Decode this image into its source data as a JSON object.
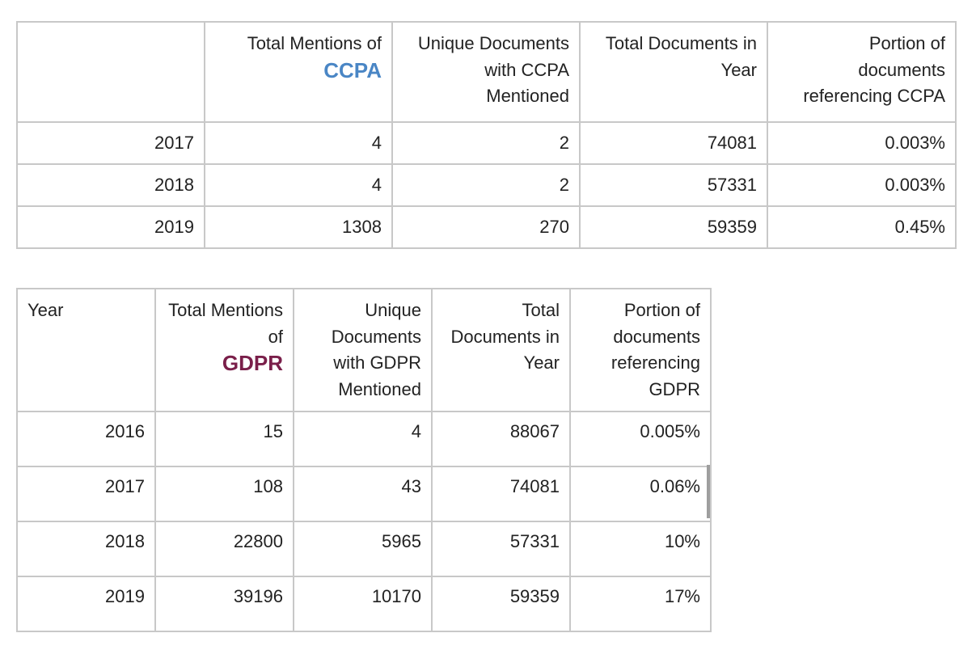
{
  "ccpa_table": {
    "headers": {
      "year": "",
      "total_mentions_prefix": "Total Mentions of",
      "keyword": "CCPA",
      "unique_docs": "Unique Documents with CCPA Mentioned",
      "total_docs": "Total Documents in Year",
      "portion": "Portion of documents referencing CCPA"
    },
    "rows": [
      {
        "year": "2017",
        "mentions": "4",
        "unique": "2",
        "total": "74081",
        "portion": "0.003%"
      },
      {
        "year": "2018",
        "mentions": "4",
        "unique": "2",
        "total": "57331",
        "portion": "0.003%"
      },
      {
        "year": "2019",
        "mentions": "1308",
        "unique": "270",
        "total": "59359",
        "portion": "0.45%"
      }
    ]
  },
  "gdpr_table": {
    "headers": {
      "year": "Year",
      "total_mentions_prefix": "Total Mentions of",
      "keyword": "GDPR",
      "unique_docs": "Unique Documents with GDPR Mentioned",
      "total_docs": "Total Documents in Year",
      "portion": "Portion of documents referencing GDPR"
    },
    "rows": [
      {
        "year": "2016",
        "mentions": "15",
        "unique": "4",
        "total": "88067",
        "portion": "0.005%"
      },
      {
        "year": "2017",
        "mentions": "108",
        "unique": "43",
        "total": "74081",
        "portion": "0.06%"
      },
      {
        "year": "2018",
        "mentions": "22800",
        "unique": "5965",
        "total": "57331",
        "portion": "10%"
      },
      {
        "year": "2019",
        "mentions": "39196",
        "unique": "10170",
        "total": "59359",
        "portion": "17%"
      }
    ]
  },
  "colors": {
    "ccpa_keyword": "#4a86c5",
    "gdpr_keyword": "#7a1f4a",
    "border": "#c8c8c8",
    "text": "#222222"
  }
}
